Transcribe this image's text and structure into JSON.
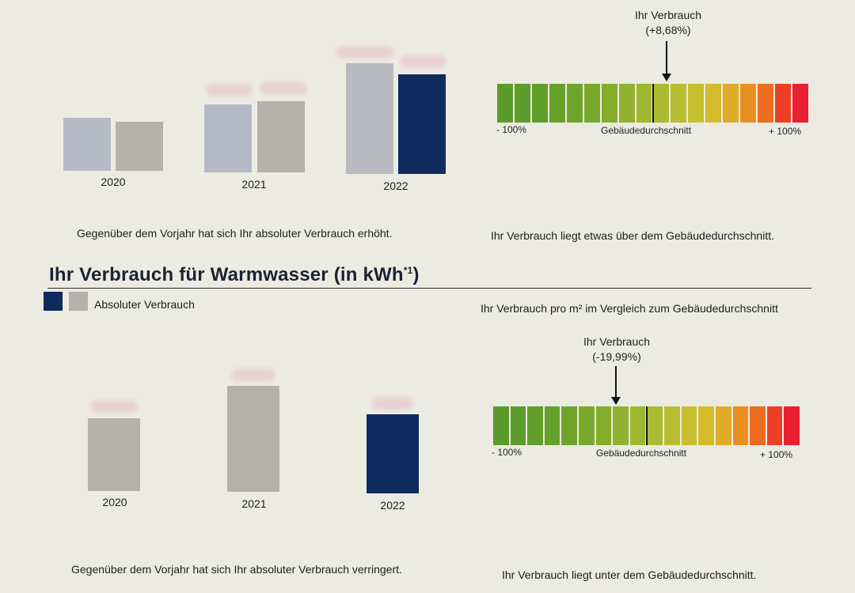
{
  "chart_data": [
    {
      "type": "bar",
      "categories": [
        "2020",
        "2021",
        "2022"
      ],
      "series": [
        {
          "values": [
            67,
            86,
            140
          ]
        },
        {
          "values": [
            62,
            90,
            126
          ]
        }
      ],
      "summary": "Gegenüber dem Vorjahr hat sich Ihr absoluter Verbrauch erhöht.",
      "colors": {
        "prev_a": "#b6bac6",
        "prev_b": "#b3b2a9",
        "current": "#0f2a5e"
      }
    },
    {
      "type": "bar",
      "title": "Ihr Verbrauch für Warmwasser (in kWh",
      "title_sup": "*1",
      "title_close": ")",
      "categories": [
        "2020",
        "2021",
        "2022"
      ],
      "legend": "Absoluter Verbrauch",
      "series": [
        {
          "name": "Absoluter Verbrauch",
          "values": [
            92,
            134,
            100
          ]
        }
      ],
      "summary": "Gegenüber dem Vorjahr hat sich Ihr absoluter Verbrauch verringert.",
      "colors": {
        "prev": "#b3b2a9",
        "current": "#0f2a5e"
      }
    }
  ],
  "comparison_1": {
    "callout_title": "Ihr Verbrauch",
    "callout_value": "(+8,68%)",
    "deviation_percent": 8.68,
    "left_label": "- 100%",
    "center_label": "Gebäudedurchschnitt",
    "right_label": "+ 100%",
    "summary": "Ihr Verbrauch liegt etwas über dem Gebäudedurchschnitt."
  },
  "comparison_2": {
    "subtitle": "Ihr Verbrauch pro m² im Vergleich zum Gebäudedurchschnitt",
    "callout_title": "Ihr Verbrauch",
    "callout_value": "(-19,99%)",
    "deviation_percent": -19.99,
    "left_label": "- 100%",
    "center_label": "Gebäudedurchschnitt",
    "right_label": "+ 100%",
    "summary": "Ihr Verbrauch liegt unter dem Gebäudedurchschnitt."
  },
  "scale_colors": [
    "#5b9b2c",
    "#5e9c2b",
    "#629e2a",
    "#67a129",
    "#6ea429",
    "#78a82a",
    "#84ad2c",
    "#91b22e",
    "#9eb730",
    "#abbb31",
    "#b9be31",
    "#c6bf2f",
    "#d4bb2b",
    "#e0ab26",
    "#e88f21",
    "#ec6b1f",
    "#ed3f26",
    "#ea1f31"
  ]
}
